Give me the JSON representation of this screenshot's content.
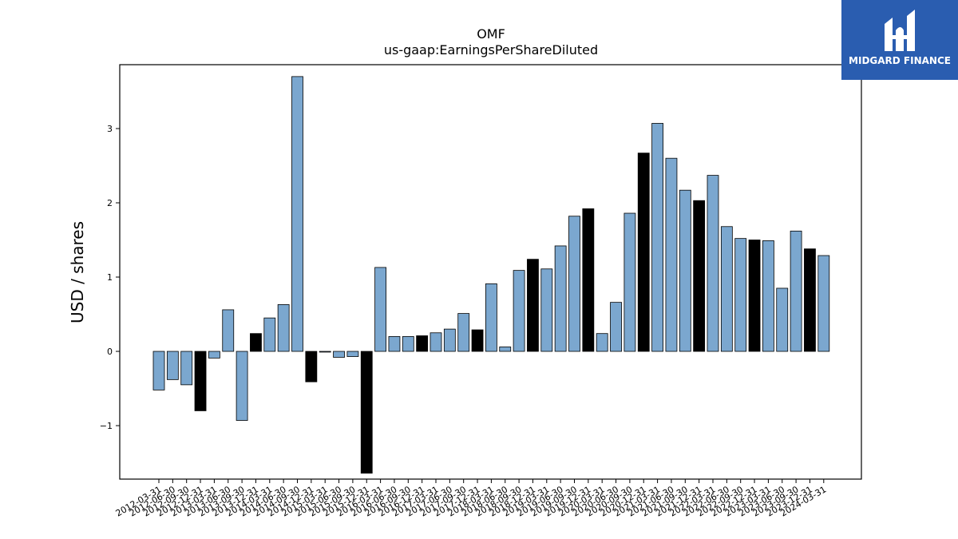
{
  "chart_data": {
    "type": "bar",
    "title": "OMF",
    "subtitle": "us-gaap:EarningsPerShareDiluted",
    "xlabel": "",
    "ylabel": "USD / shares",
    "ylim": [
      -1.72,
      3.86
    ],
    "yticks": [
      -1,
      0,
      1,
      2,
      3
    ],
    "ytick_labels": [
      "−1",
      "0",
      "1",
      "2",
      "3"
    ],
    "grid": false,
    "colors": {
      "normal": "#7ba7cf",
      "highlight": "#000000",
      "edge": "#000000"
    },
    "categories": [
      "2012-03-31",
      "2012-06-30",
      "2012-09-30",
      "2012-12-31",
      "2013-03-31",
      "2013-06-30",
      "2013-09-30",
      "2013-12-31",
      "2014-03-31",
      "2014-06-30",
      "2014-09-30",
      "2014-12-31",
      "2015-03-31",
      "2015-06-30",
      "2015-09-30",
      "2015-12-31",
      "2016-03-31",
      "2016-06-30",
      "2016-09-30",
      "2016-12-31",
      "2017-03-31",
      "2017-06-30",
      "2017-09-30",
      "2017-12-31",
      "2018-03-31",
      "2018-06-30",
      "2018-09-30",
      "2018-12-31",
      "2019-03-31",
      "2019-06-30",
      "2019-09-30",
      "2019-12-31",
      "2020-03-31",
      "2020-06-30",
      "2020-09-30",
      "2020-12-31",
      "2021-03-31",
      "2021-06-30",
      "2021-09-30",
      "2021-12-31",
      "2022-03-31",
      "2022-06-30",
      "2022-09-30",
      "2022-12-31",
      "2023-03-31",
      "2023-06-30",
      "2023-09-30",
      "2023-12-31",
      "2024-03-31"
    ],
    "values": [
      -0.52,
      -0.38,
      -0.45,
      -0.8,
      -0.09,
      0.56,
      -0.93,
      0.24,
      0.45,
      0.63,
      3.7,
      -0.41,
      -0.01,
      -0.08,
      -0.07,
      -1.64,
      1.13,
      0.2,
      0.2,
      0.21,
      0.25,
      0.3,
      0.51,
      0.29,
      0.91,
      0.06,
      1.09,
      1.24,
      1.11,
      1.42,
      1.82,
      1.92,
      0.24,
      0.66,
      1.86,
      2.67,
      3.07,
      2.6,
      2.17,
      2.03,
      2.37,
      1.68,
      1.52,
      1.5,
      1.49,
      0.85,
      1.62,
      1.38,
      1.29
    ],
    "highlight": [
      false,
      false,
      false,
      true,
      false,
      false,
      false,
      true,
      false,
      false,
      false,
      true,
      false,
      false,
      false,
      true,
      false,
      false,
      false,
      true,
      false,
      false,
      false,
      true,
      false,
      false,
      false,
      true,
      false,
      false,
      false,
      true,
      false,
      false,
      false,
      true,
      false,
      false,
      false,
      true,
      false,
      false,
      false,
      true,
      false,
      false,
      false,
      true,
      false
    ]
  },
  "logo": {
    "text": "MIDGARD FINANCE"
  }
}
